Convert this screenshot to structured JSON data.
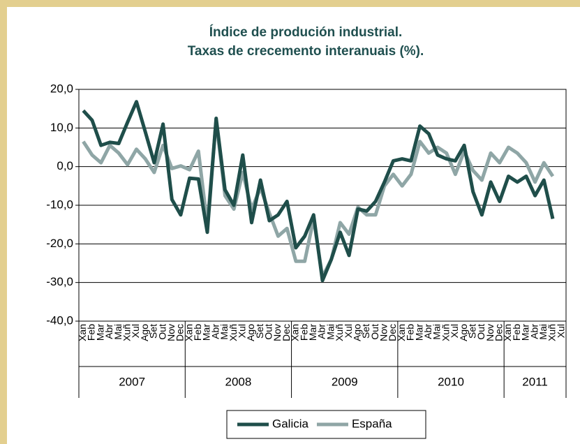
{
  "chart_data": {
    "type": "line",
    "title": "Índice de produción industrial.",
    "subtitle": "Taxas de crecemento interanuais (%).",
    "categories": [
      "Xan",
      "Feb",
      "Mar",
      "Abr",
      "Mai",
      "Xuñ",
      "Xul",
      "Ago",
      "Set",
      "Out",
      "Nov",
      "Dec",
      "Xan",
      "Feb",
      "Mar",
      "Abr",
      "Mai",
      "Xuñ",
      "Xul",
      "Ago",
      "Set",
      "Out",
      "Nov",
      "Dec",
      "Xan",
      "Feb",
      "Mar",
      "Abr",
      "Mai",
      "Xuñ",
      "Xul",
      "Ago",
      "Set",
      "Out",
      "Nov",
      "Dec",
      "Xan",
      "Feb",
      "Mar",
      "Abr",
      "Mai",
      "Xuñ",
      "Xul",
      "Ago",
      "Set",
      "Out",
      "Nov",
      "Dec",
      "Xan",
      "Feb",
      "Mar",
      "Abr",
      "Mai",
      "Xuñ",
      "Xul"
    ],
    "year_groups": [
      "2007",
      "2008",
      "2009",
      "2010",
      "2011"
    ],
    "series": [
      {
        "name": "Galicia",
        "color": "#1f4e4a",
        "values": [
          14.5,
          12,
          5.5,
          6.3,
          6,
          11.5,
          16.8,
          9,
          1,
          11,
          -8.5,
          -12.5,
          -3,
          -3.2,
          -17,
          12.5,
          -6,
          -10,
          3,
          -14.5,
          -3.5,
          -14,
          -12.5,
          -9,
          -21,
          -18,
          -12.5,
          -29.5,
          -24,
          -17,
          -23,
          -11,
          -11.5,
          -9,
          -4,
          1.5,
          2,
          1.5,
          10.5,
          8.5,
          3,
          2,
          1.5,
          5.5,
          -6.5,
          -12.5,
          -4,
          -9,
          -2.5,
          -4,
          -2.5,
          -7.5,
          -3.5,
          -13.5,
          null
        ]
      },
      {
        "name": "España",
        "color": "#8fa6a6",
        "values": [
          6.5,
          3,
          1,
          5.5,
          3.5,
          0.5,
          4.5,
          2,
          -1.5,
          5.5,
          -0.5,
          0.2,
          -0.8,
          4,
          -15,
          12,
          -7.5,
          -11,
          -1.5,
          -11,
          -5.5,
          -12,
          -18,
          -16,
          -24.5,
          -24.5,
          -13.5,
          -28.5,
          -24,
          -14.5,
          -17.5,
          -10.5,
          -12.5,
          -12.5,
          -5,
          -2,
          -5,
          -2,
          6.5,
          3.5,
          5,
          3.5,
          -2,
          4,
          -1,
          -3.5,
          3.5,
          1,
          5,
          3.5,
          1,
          -4,
          1,
          -2.5,
          null
        ]
      }
    ],
    "ylim": [
      -40,
      20
    ],
    "yticks": [
      {
        "value": -40,
        "label": "-40,0"
      },
      {
        "value": -30,
        "label": "-30,0"
      },
      {
        "value": -20,
        "label": "-20,0"
      },
      {
        "value": -10,
        "label": "-10,0"
      },
      {
        "value": 0,
        "label": "0,0"
      },
      {
        "value": 10,
        "label": "10,0"
      },
      {
        "value": 20,
        "label": "20,0"
      }
    ],
    "grid": true
  }
}
